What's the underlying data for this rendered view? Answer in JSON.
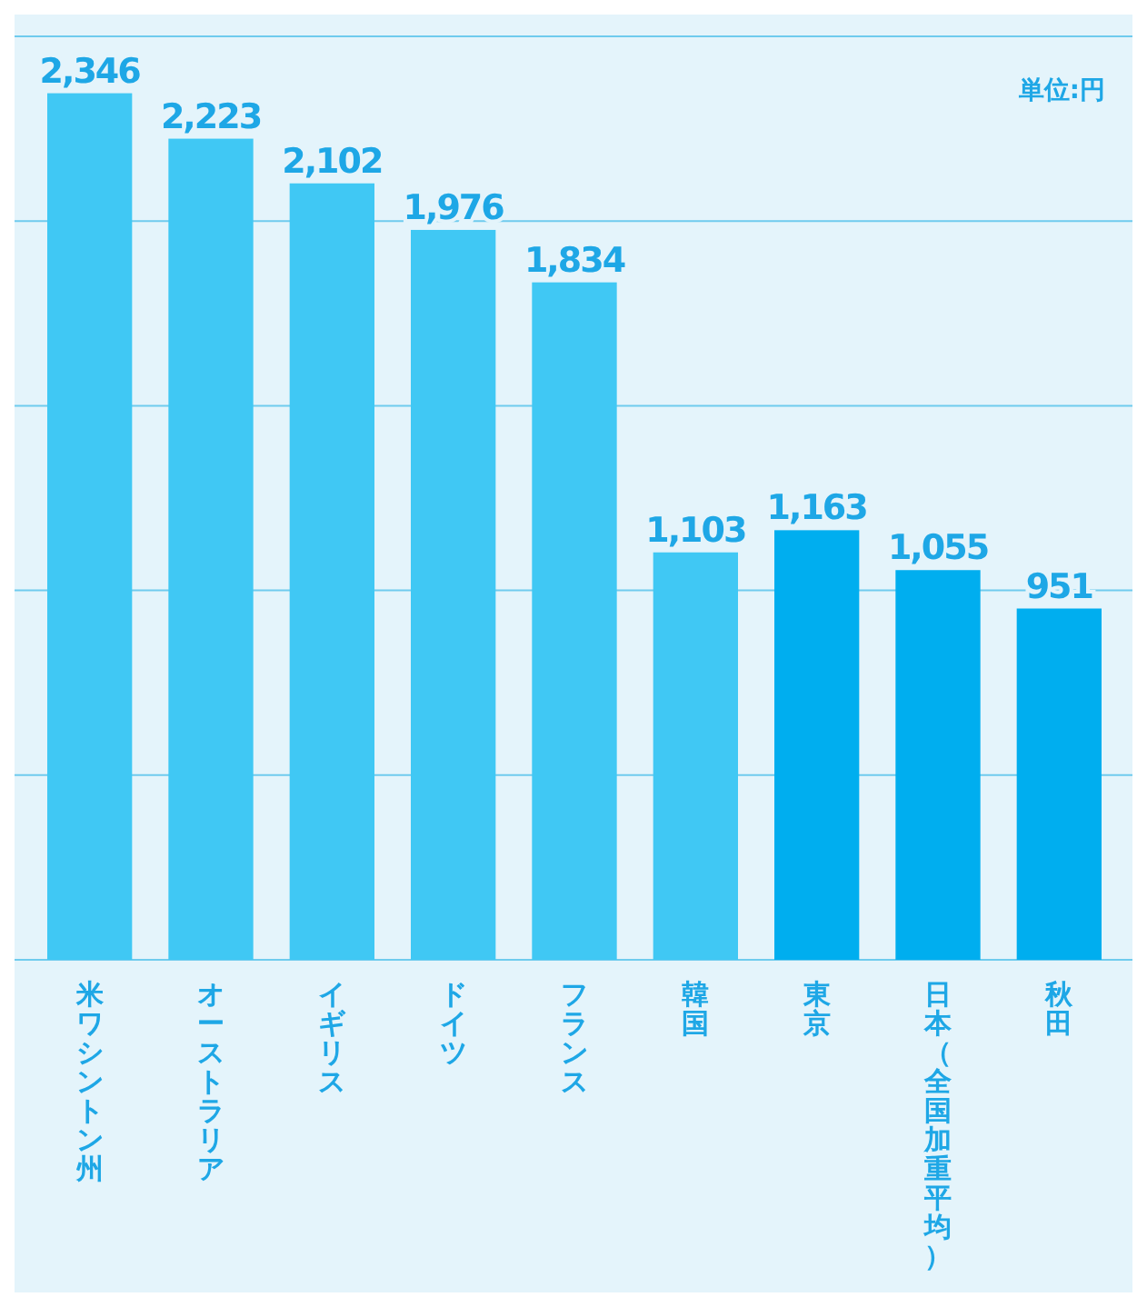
{
  "chart_data": {
    "type": "bar",
    "categories": [
      "米ワシントン州",
      "オーストラリア",
      "イギリス",
      "ドイツ",
      "フランス",
      "韓国",
      "東京",
      "日本（全国加重平均）",
      "秋田"
    ],
    "values": [
      2346,
      2223,
      2102,
      1976,
      1834,
      1103,
      1163,
      1055,
      951
    ],
    "colors": [
      "#40c8f4",
      "#40c8f4",
      "#40c8f4",
      "#40c8f4",
      "#40c8f4",
      "#40c8f4",
      "#00aeef",
      "#00aeef",
      "#00aeef"
    ],
    "ylim": [
      0,
      2500
    ],
    "yticks": [
      {
        "value": 0,
        "label": null
      },
      {
        "value": 500,
        "label": null
      },
      {
        "value": 1000,
        "label": null
      },
      {
        "value": 1500,
        "label": null
      },
      {
        "value": 2000,
        "label": null
      },
      {
        "value": 2500,
        "label": null
      }
    ],
    "value_labels": [
      "2,346",
      "2,223",
      "2,102",
      "1,976",
      "1,834",
      "1,103",
      "1,163",
      "1,055",
      "951"
    ],
    "tick_labels": "x",
    "grid": "y",
    "annotations": [
      "単位:円"
    ]
  }
}
